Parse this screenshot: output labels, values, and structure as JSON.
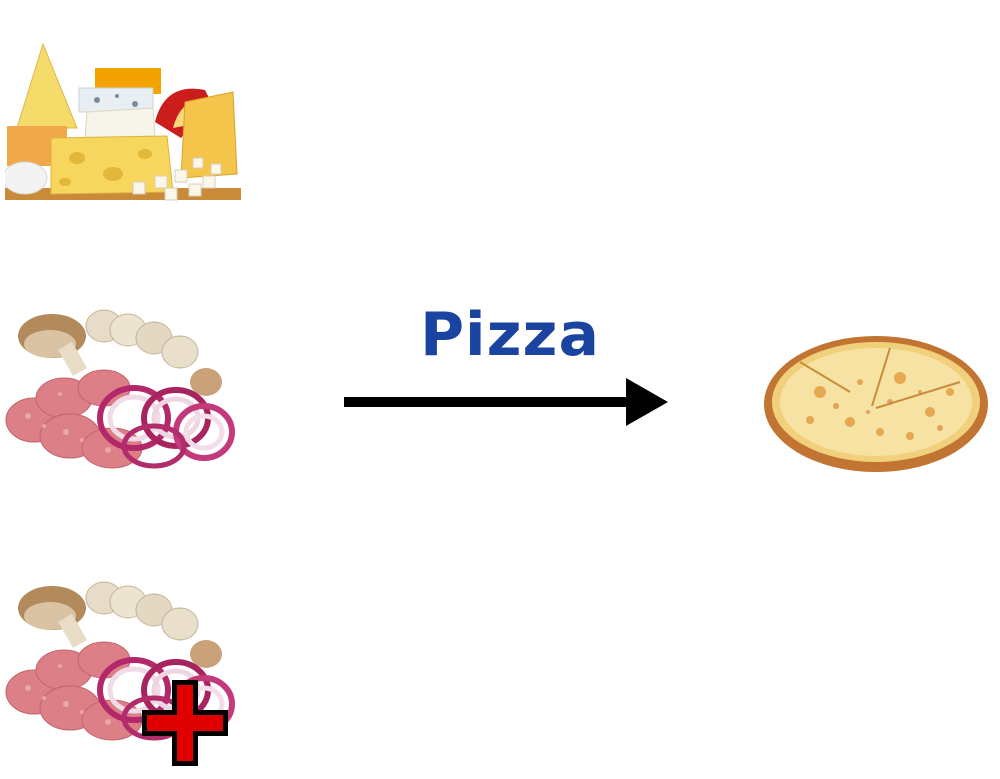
{
  "diagram": {
    "label": "Pizza",
    "label_color": "#1b44a0",
    "arrow_color": "#000000",
    "inputs": [
      {
        "name": "cheese"
      },
      {
        "name": "mushroom-salami-onion"
      },
      {
        "name": "mushroom-salami-onion-plus"
      }
    ],
    "output": {
      "name": "pizza"
    },
    "plus_color": "#e00000"
  }
}
